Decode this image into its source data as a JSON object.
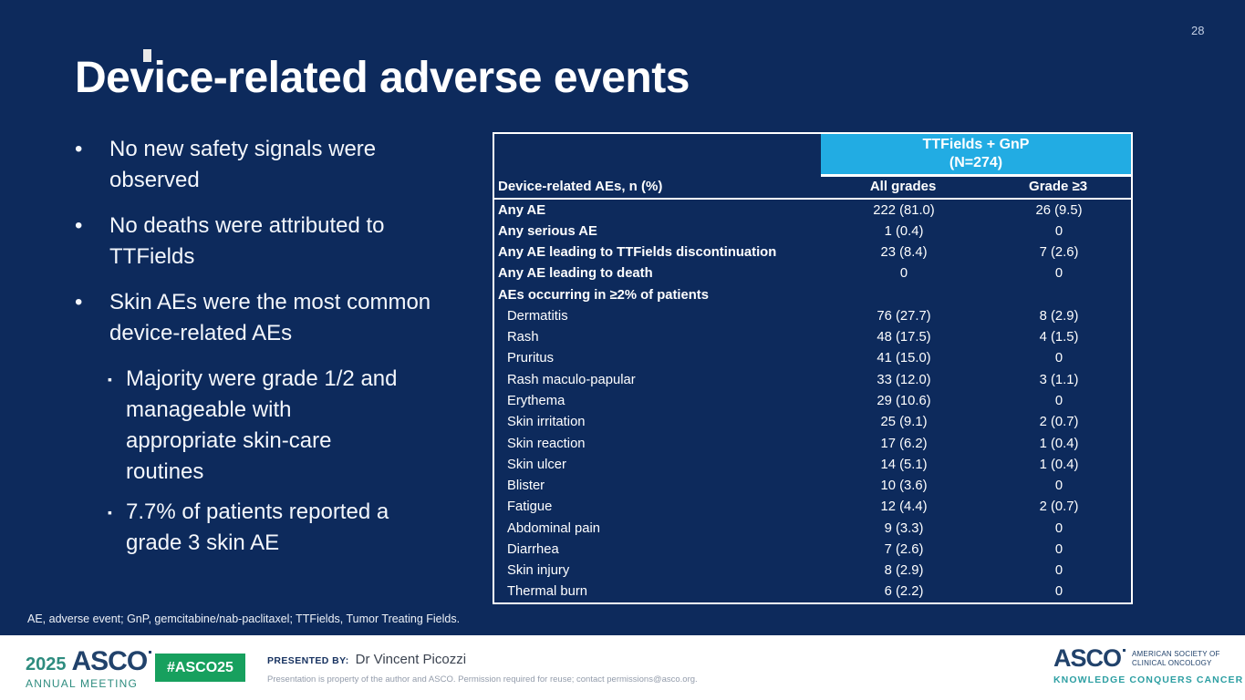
{
  "page_number": "28",
  "title": "Device-related adverse events",
  "bullets": [
    {
      "level": 1,
      "text": "No new safety signals were observed"
    },
    {
      "level": 1,
      "text": "No deaths were attributed to TTFields"
    },
    {
      "level": 1,
      "text": "Skin AEs were the most common device-related AEs"
    },
    {
      "level": 2,
      "text": "Majority were grade 1/2 and manageable with appropriate skin-care routines"
    },
    {
      "level": 2,
      "text": "7.7% of patients reported a grade 3 skin AE"
    }
  ],
  "table": {
    "group_header": "TTFields + GnP",
    "group_subheader": "(N=274)",
    "row_header": "Device-related AEs, n (%)",
    "col_headers": [
      "All grades",
      "Grade ≥3"
    ],
    "rows": [
      {
        "label": "Any AE",
        "bold": true,
        "indent": false,
        "all_grades": "222 (81.0)",
        "grade3": "26 (9.5)"
      },
      {
        "label": "Any serious AE",
        "bold": true,
        "indent": false,
        "all_grades": "1 (0.4)",
        "grade3": "0"
      },
      {
        "label": "Any AE leading to TTFields discontinuation",
        "bold": true,
        "indent": false,
        "all_grades": "23 (8.4)",
        "grade3": "7 (2.6)"
      },
      {
        "label": "Any AE leading to death",
        "bold": true,
        "indent": false,
        "all_grades": "0",
        "grade3": "0"
      },
      {
        "label": "AEs occurring in ≥2% of patients",
        "bold": true,
        "indent": false,
        "all_grades": "",
        "grade3": ""
      },
      {
        "label": "Dermatitis",
        "bold": false,
        "indent": true,
        "all_grades": "76 (27.7)",
        "grade3": "8 (2.9)"
      },
      {
        "label": "Rash",
        "bold": false,
        "indent": true,
        "all_grades": "48 (17.5)",
        "grade3": "4 (1.5)"
      },
      {
        "label": "Pruritus",
        "bold": false,
        "indent": true,
        "all_grades": "41 (15.0)",
        "grade3": "0"
      },
      {
        "label": "Rash maculo-papular",
        "bold": false,
        "indent": true,
        "all_grades": "33 (12.0)",
        "grade3": "3 (1.1)"
      },
      {
        "label": "Erythema",
        "bold": false,
        "indent": true,
        "all_grades": "29 (10.6)",
        "grade3": "0"
      },
      {
        "label": "Skin irritation",
        "bold": false,
        "indent": true,
        "all_grades": "25 (9.1)",
        "grade3": "2 (0.7)"
      },
      {
        "label": "Skin reaction",
        "bold": false,
        "indent": true,
        "all_grades": "17 (6.2)",
        "grade3": "1 (0.4)"
      },
      {
        "label": "Skin ulcer",
        "bold": false,
        "indent": true,
        "all_grades": "14 (5.1)",
        "grade3": "1 (0.4)"
      },
      {
        "label": "Blister",
        "bold": false,
        "indent": true,
        "all_grades": "10 (3.6)",
        "grade3": "0"
      },
      {
        "label": "Fatigue",
        "bold": false,
        "indent": true,
        "all_grades": "12 (4.4)",
        "grade3": "2 (0.7)"
      },
      {
        "label": "Abdominal pain",
        "bold": false,
        "indent": true,
        "all_grades": "9 (3.3)",
        "grade3": "0"
      },
      {
        "label": "Diarrhea",
        "bold": false,
        "indent": true,
        "all_grades": "7 (2.6)",
        "grade3": "0"
      },
      {
        "label": "Skin injury",
        "bold": false,
        "indent": true,
        "all_grades": "8 (2.9)",
        "grade3": "0"
      },
      {
        "label": "Thermal burn",
        "bold": false,
        "indent": true,
        "all_grades": "6 (2.2)",
        "grade3": "0"
      }
    ]
  },
  "footnote": "AE, adverse event; GnP, gemcitabine/nab-paclitaxel; TTFields, Tumor Treating Fields.",
  "footer": {
    "meeting_year": "2025",
    "meeting_logo": "ASCO",
    "meeting_sub": "ANNUAL MEETING",
    "hashtag": "#ASCO25",
    "presented_by_label": "PRESENTED BY:",
    "presenter": "Dr Vincent Picozzi",
    "disclaimer": "Presentation is property of the author and ASCO. Permission required for reuse; contact permissions@asco.org.",
    "asco_logo": "ASCO",
    "asco_society": "AMERICAN SOCIETY OF CLINICAL ONCOLOGY",
    "asco_tagline": "KNOWLEDGE CONQUERS CANCER"
  },
  "colors": {
    "slide_background": "#0d2a5c",
    "table_header_cyan": "#22ace3",
    "table_text": "#ffffff",
    "hashtag_green": "#17a05e",
    "meeting_teal": "#2e8c7f",
    "asco_navy": "#21426b",
    "tagline_teal": "#2d9fa3"
  }
}
